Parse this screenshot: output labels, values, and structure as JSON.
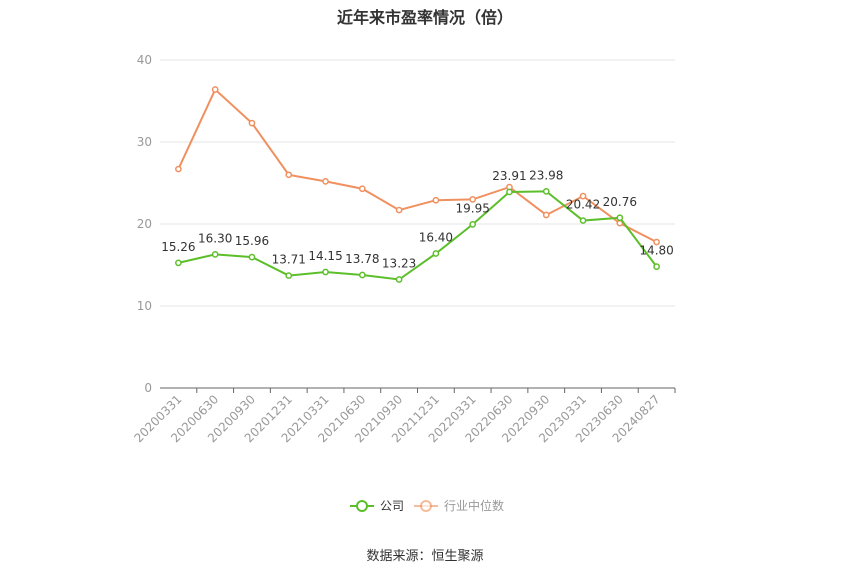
{
  "title": "近年来市盈率情况（倍）",
  "source": "数据来源：恒生聚源",
  "colors": {
    "company": "#5cbf2a",
    "industry": "#f0905f",
    "grid": "#e6e6e6",
    "axis": "#666666"
  },
  "chart_data": {
    "type": "line",
    "title": "近年来市盈率情况（倍）",
    "categories": [
      "20200331",
      "20200630",
      "20200930",
      "20201231",
      "20210331",
      "20210630",
      "20210930",
      "20211231",
      "20220331",
      "20220630",
      "20220930",
      "20230331",
      "20230630",
      "20240827"
    ],
    "ylim": [
      0,
      40
    ],
    "yticks": [
      0,
      10,
      20,
      30,
      40
    ],
    "grid": true,
    "legend": "bottom-center",
    "series": [
      {
        "name": "公司",
        "color": "#5cbf2a",
        "show_labels": true,
        "values": [
          15.26,
          16.3,
          15.96,
          13.71,
          14.15,
          13.78,
          13.23,
          16.4,
          19.95,
          23.91,
          23.98,
          20.42,
          20.76,
          14.8
        ],
        "labels": [
          "15.26",
          "16.30",
          "15.96",
          "13.71",
          "14.15",
          "13.78",
          "13.23",
          "16.40",
          "19.95",
          "23.91",
          "23.98",
          "20.42",
          "20.76",
          "14.80"
        ]
      },
      {
        "name": "行业中位数",
        "color": "#f0905f",
        "show_labels": false,
        "values": [
          26.7,
          36.4,
          32.3,
          26.0,
          25.2,
          24.3,
          21.7,
          22.9,
          23.0,
          24.5,
          21.1,
          23.4,
          20.1,
          17.8
        ]
      }
    ]
  }
}
